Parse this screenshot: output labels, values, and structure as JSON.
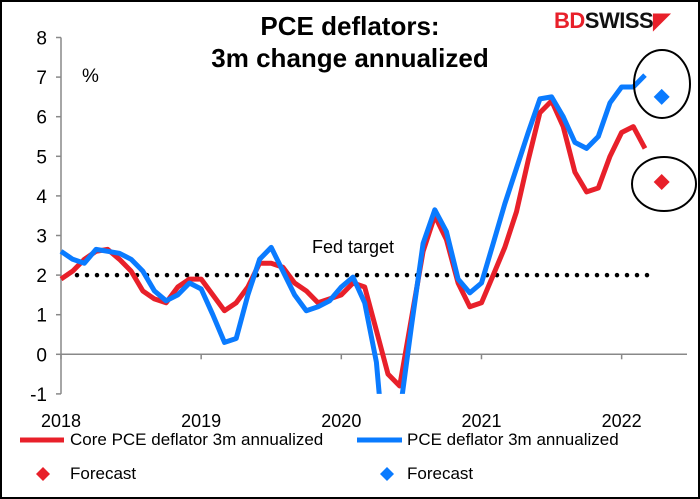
{
  "chart_data": {
    "type": "line",
    "title": "PCE deflators:\n3m change annualized",
    "title_lines": [
      "PCE deflators:",
      "3m change annualized"
    ],
    "ylabel": "%",
    "ylim": [
      -1,
      8
    ],
    "yticks": [
      "-1",
      "0",
      "1",
      "2",
      "3",
      "4",
      "5",
      "6",
      "7",
      "8"
    ],
    "xticks": [
      "2018",
      "2019",
      "2020",
      "2021",
      "2022"
    ],
    "x_start": "2018-01",
    "x_frequency": "monthly",
    "grid": false,
    "legend_position": "bottom",
    "reference_line": {
      "label": "Fed target",
      "value": 2
    },
    "series": [
      {
        "name": "Core PCE deflator 3m annualized",
        "color": "#e8202a",
        "values": [
          1.9,
          2.1,
          2.4,
          2.6,
          2.65,
          2.4,
          2.1,
          1.6,
          1.4,
          1.3,
          1.7,
          1.9,
          1.9,
          1.5,
          1.1,
          1.3,
          1.7,
          2.3,
          2.3,
          2.2,
          1.8,
          1.6,
          1.3,
          1.4,
          1.5,
          1.8,
          1.7,
          0.6,
          -0.5,
          -0.8,
          0.9,
          2.6,
          3.5,
          2.9,
          1.8,
          1.2,
          1.3,
          2.0,
          2.7,
          3.6,
          4.9,
          6.1,
          6.4,
          5.75,
          4.6,
          4.1,
          4.2,
          5.0,
          5.6,
          5.75,
          5.2
        ]
      },
      {
        "name": "PCE deflator 3m annualized",
        "color": "#0a7bff",
        "values": [
          2.6,
          2.4,
          2.3,
          2.65,
          2.6,
          2.55,
          2.4,
          2.1,
          1.6,
          1.35,
          1.5,
          1.8,
          1.65,
          1.0,
          0.3,
          0.4,
          1.5,
          2.4,
          2.7,
          2.1,
          1.5,
          1.1,
          1.2,
          1.35,
          1.7,
          1.95,
          1.3,
          -0.2,
          -3.5,
          -1.5,
          0.7,
          2.8,
          3.65,
          3.1,
          1.9,
          1.55,
          1.8,
          2.8,
          3.8,
          4.7,
          5.6,
          6.45,
          6.5,
          6.0,
          5.35,
          5.2,
          5.5,
          6.35,
          6.75,
          6.75,
          7.05
        ]
      }
    ],
    "forecasts": [
      {
        "name": "Forecast",
        "series": "Core PCE deflator 3m annualized",
        "x": "2022-04",
        "value": 4.35,
        "color": "#e8202a"
      },
      {
        "name": "Forecast",
        "series": "PCE deflator 3m annualized",
        "x": "2022-04",
        "value": 6.5,
        "color": "#0a7bff"
      }
    ]
  },
  "logo": {
    "part1": "BD",
    "part2": "SWISS"
  }
}
